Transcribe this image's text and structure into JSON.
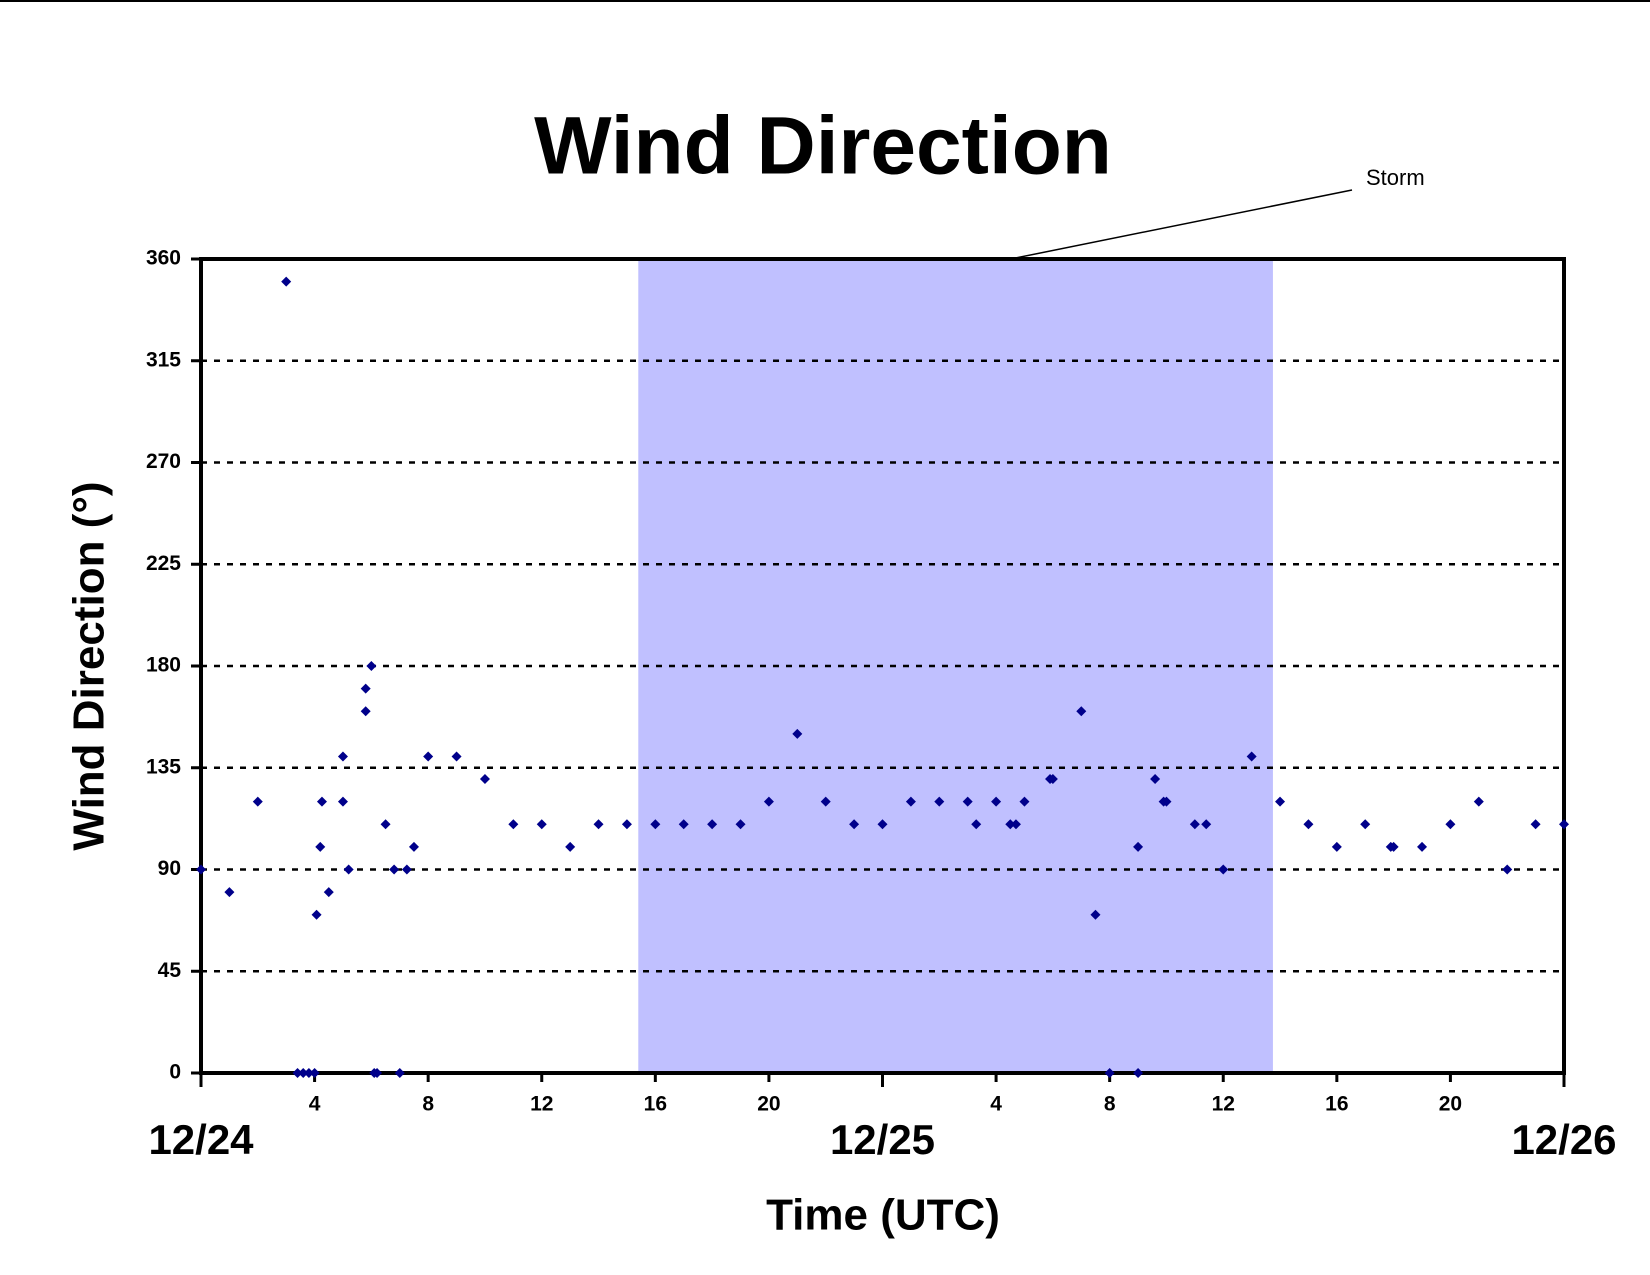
{
  "chart_data": {
    "type": "scatter",
    "title": "Wind Direction",
    "x_label": "Time (UTC)",
    "y_label": "Wind Direction (°)",
    "color": "#00008b",
    "shaded_region": {
      "x": [
        15.4,
        37.75
      ],
      "color": "#c0c0ff",
      "label": "Storm"
    },
    "xlim": [
      0,
      48
    ],
    "ylim": [
      0,
      360
    ],
    "xticks": [
      {
        "value": 0,
        "label": "12/24"
      },
      4,
      8,
      12,
      16,
      20,
      {
        "value": 24,
        "label": "12/25"
      },
      {
        "value": 28,
        "label": "4"
      },
      {
        "value": 32,
        "label": "8"
      },
      {
        "value": 36,
        "label": "12"
      },
      {
        "value": 40,
        "label": "16"
      },
      {
        "value": 44,
        "label": "20"
      },
      {
        "value": 48,
        "label": "12/26"
      }
    ],
    "yticks": [
      0,
      45,
      90,
      135,
      180,
      225,
      270,
      315,
      360
    ],
    "grid": true,
    "x": [
      0,
      1,
      2,
      3,
      3.4,
      3.6,
      3.8,
      4,
      4.07,
      4.2,
      4.26,
      4.5,
      5,
      5,
      5.2,
      5.8,
      5.8,
      6,
      6.1,
      6.2,
      6.5,
      6.8,
      7,
      7.25,
      7.5,
      8,
      9,
      10,
      11,
      12,
      13,
      14,
      15,
      16,
      17,
      18,
      19,
      20,
      21,
      22,
      23,
      24,
      25,
      26,
      27,
      27.3,
      28,
      28.5,
      28.7,
      29,
      29.9,
      30,
      31,
      31.5,
      32,
      33,
      33,
      33.6,
      33.9,
      34,
      35,
      35.4,
      36,
      37,
      38,
      39,
      40,
      41,
      41.9,
      42,
      43,
      44,
      45,
      46,
      47,
      48
    ],
    "values": [
      90,
      80,
      120,
      350,
      0,
      0,
      0,
      0,
      70,
      100,
      120,
      80,
      140,
      120,
      90,
      160,
      170,
      180,
      0,
      0,
      110,
      90,
      0,
      90,
      100,
      140,
      140,
      130,
      110,
      110,
      100,
      110,
      110,
      110,
      110,
      110,
      110,
      120,
      150,
      120,
      110,
      110,
      120,
      120,
      120,
      110,
      120,
      110,
      110,
      120,
      130,
      130,
      160,
      70,
      0,
      100,
      0,
      130,
      120,
      120,
      110,
      110,
      90,
      140,
      120,
      110,
      100,
      110,
      100,
      100,
      100,
      110,
      120,
      90,
      110,
      110
    ]
  }
}
